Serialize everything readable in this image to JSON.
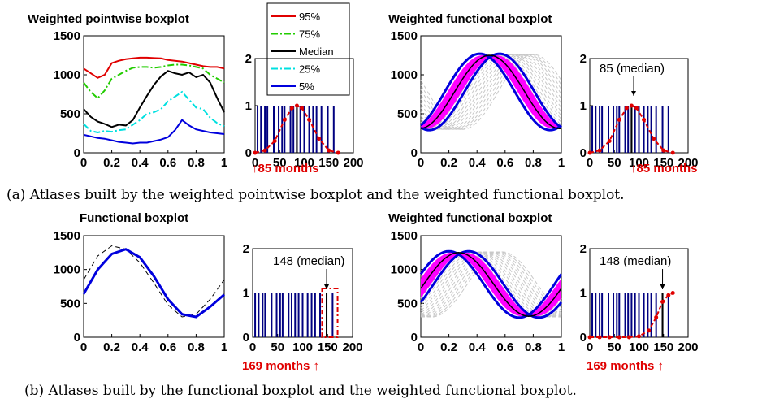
{
  "panel_a": {
    "left_title": "Weighted pointwise boxplot",
    "right_title": "Weighted functional boxplot",
    "caption": "(a) Atlases built by the weighted pointwise boxplot and the weighted functional boxplot.",
    "left_hist_label": "↑85 months",
    "right_hist_label": "↑85 months",
    "right_annotation": "85 (median)"
  },
  "panel_b": {
    "left_title": "Functional boxplot",
    "right_title": "Weighted functional boxplot",
    "caption": "(b) Atlases built by the functional boxplot and the weighted functional boxplot.",
    "left_hist_label": "169 months ↑",
    "right_hist_label": "169 months ↑",
    "left_annotation": "148 (median)",
    "right_annotation": "148 (median)"
  },
  "legend": [
    "95%",
    "75%",
    "Median",
    "25%",
    "5%"
  ],
  "colors": {
    "p95": "#e00000",
    "p75": "#22cc00",
    "median": "#000000",
    "p25": "#00e0e0",
    "p5": "#0000dd",
    "band": "#ff00ff",
    "bars": "#000080",
    "weight": "#e00000"
  },
  "chart_data": [
    {
      "type": "line",
      "title": "Weighted pointwise boxplot",
      "xlim": [
        0,
        1
      ],
      "ylim": [
        0,
        1500
      ],
      "x_ticks": [
        "0",
        "0.2",
        "0.4",
        "0.6",
        "0.8",
        "1"
      ],
      "y_ticks": [
        "0",
        "500",
        "1000",
        "1500"
      ],
      "x": [
        0,
        0.05,
        0.1,
        0.15,
        0.2,
        0.25,
        0.3,
        0.35,
        0.4,
        0.45,
        0.5,
        0.55,
        0.6,
        0.65,
        0.7,
        0.75,
        0.8,
        0.85,
        0.9,
        0.95,
        1
      ],
      "series": [
        {
          "name": "95%",
          "values": [
            1080,
            1020,
            960,
            1000,
            1150,
            1180,
            1200,
            1210,
            1220,
            1220,
            1215,
            1210,
            1190,
            1180,
            1170,
            1150,
            1130,
            1110,
            1100,
            1100,
            1080
          ]
        },
        {
          "name": "75%",
          "values": [
            900,
            780,
            700,
            800,
            950,
            1000,
            1050,
            1090,
            1100,
            1100,
            1090,
            1100,
            1120,
            1130,
            1130,
            1120,
            1100,
            1080,
            1000,
            950,
            900
          ]
        },
        {
          "name": "Median",
          "values": [
            560,
            460,
            400,
            370,
            330,
            360,
            350,
            420,
            580,
            730,
            870,
            980,
            1050,
            1020,
            1000,
            1030,
            970,
            1000,
            900,
            700,
            520
          ]
        },
        {
          "name": "25%",
          "values": [
            370,
            280,
            260,
            280,
            270,
            290,
            300,
            360,
            420,
            500,
            520,
            560,
            660,
            720,
            780,
            680,
            580,
            560,
            450,
            380,
            340
          ]
        },
        {
          "name": "5%",
          "values": [
            230,
            210,
            190,
            180,
            160,
            140,
            130,
            120,
            130,
            130,
            150,
            170,
            200,
            290,
            420,
            350,
            300,
            280,
            260,
            250,
            240
          ]
        }
      ]
    },
    {
      "type": "bar",
      "xlim": [
        0,
        200
      ],
      "ylim": [
        0,
        2
      ],
      "x_ticks": [
        "0",
        "50",
        "100",
        "150",
        "200"
      ],
      "y_ticks": [
        "0",
        "1",
        "2"
      ],
      "bar_positions": [
        5,
        12,
        20,
        25,
        38,
        48,
        55,
        60,
        72,
        78,
        85,
        92,
        100,
        110,
        118,
        125,
        135,
        148,
        160
      ],
      "median": 85,
      "weights": {
        "x": [
          0,
          20,
          40,
          60,
          75,
          85,
          95,
          110,
          130,
          150,
          169
        ],
        "y": [
          0,
          0.05,
          0.25,
          0.7,
          0.95,
          1.0,
          0.95,
          0.7,
          0.3,
          0.05,
          0
        ]
      }
    },
    {
      "type": "line",
      "title": "Weighted functional boxplot",
      "xlim": [
        0,
        1
      ],
      "ylim": [
        0,
        1500
      ],
      "x_ticks": [
        "0",
        "0.2",
        "0.4",
        "0.6",
        "0.8",
        "1"
      ],
      "y_ticks": [
        "0",
        "500",
        "1000",
        "1500"
      ],
      "median_phase": 0.49
    },
    {
      "type": "bar",
      "xlim": [
        0,
        200
      ],
      "ylim": [
        0,
        2
      ],
      "x_ticks": [
        "0",
        "50",
        "100",
        "150",
        "200"
      ],
      "y_ticks": [
        "0",
        "1",
        "2"
      ],
      "bar_positions": [
        5,
        12,
        20,
        25,
        38,
        48,
        55,
        60,
        72,
        78,
        85,
        92,
        100,
        110,
        118,
        125,
        135,
        148,
        160
      ],
      "median": 85,
      "weights": {
        "x": [
          0,
          20,
          40,
          60,
          75,
          85,
          95,
          110,
          130,
          150,
          169
        ],
        "y": [
          0,
          0.05,
          0.25,
          0.7,
          0.95,
          1.0,
          0.95,
          0.7,
          0.3,
          0.05,
          0
        ]
      }
    },
    {
      "type": "line",
      "title": "Functional boxplot",
      "xlim": [
        0,
        1
      ],
      "ylim": [
        0,
        1500
      ],
      "x_ticks": [
        "0",
        "0.2",
        "0.4",
        "0.6",
        "0.8",
        "1"
      ],
      "y_ticks": [
        "0",
        "500",
        "1000",
        "1500"
      ],
      "x": [
        0,
        0.1,
        0.2,
        0.3,
        0.4,
        0.5,
        0.6,
        0.7,
        0.8,
        0.9,
        1
      ],
      "series": [
        {
          "values": [
            640,
            1000,
            1230,
            1300,
            1180,
            900,
            560,
            340,
            300,
            450,
            630
          ]
        },
        {
          "values": [
            850,
            1200,
            1350,
            1300,
            1100,
            800,
            480,
            300,
            340,
            560,
            850
          ]
        }
      ]
    },
    {
      "type": "bar",
      "xlim": [
        0,
        200
      ],
      "ylim": [
        0,
        2
      ],
      "x_ticks": [
        "0",
        "50",
        "100",
        "150",
        "200"
      ],
      "y_ticks": [
        "0",
        "1",
        "2"
      ],
      "bar_positions": [
        5,
        12,
        20,
        25,
        38,
        48,
        55,
        60,
        72,
        78,
        85,
        92,
        100,
        110,
        118,
        125,
        135,
        148,
        160
      ],
      "median": 148,
      "box": [
        139,
        170
      ]
    },
    {
      "type": "line",
      "title": "Weighted functional boxplot",
      "xlim": [
        0,
        1
      ],
      "ylim": [
        0,
        1500
      ],
      "x_ticks": [
        "0",
        "0.2",
        "0.4",
        "0.6",
        "0.8",
        "1"
      ],
      "y_ticks": [
        "0",
        "500",
        "1000",
        "1500"
      ],
      "median_phase": 0.27
    },
    {
      "type": "bar",
      "xlim": [
        0,
        200
      ],
      "ylim": [
        0,
        2
      ],
      "x_ticks": [
        "0",
        "50",
        "100",
        "150",
        "200"
      ],
      "y_ticks": [
        "0",
        "1",
        "2"
      ],
      "bar_positions": [
        5,
        12,
        20,
        25,
        38,
        48,
        55,
        60,
        72,
        78,
        85,
        92,
        100,
        110,
        118,
        125,
        135,
        148,
        160
      ],
      "median": 148,
      "weights": {
        "x": [
          0,
          20,
          40,
          60,
          80,
          100,
          120,
          135,
          148,
          160,
          169
        ],
        "y": [
          0,
          0,
          0,
          0,
          0,
          0.02,
          0.15,
          0.45,
          0.8,
          0.95,
          1.0
        ]
      }
    }
  ]
}
